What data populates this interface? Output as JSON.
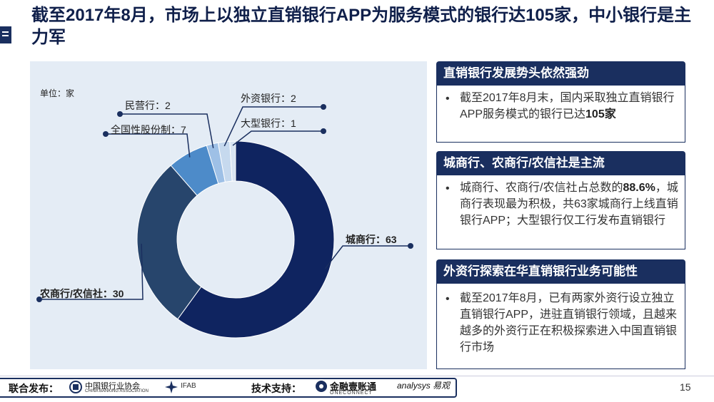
{
  "title": "截至2017年8月，市场上以独立直销银行APP为服务模式的银行达105家，中小银行是主力军",
  "colors": {
    "navy": "#1a2f5f",
    "panel": "#e4ecf5"
  },
  "chart_data": {
    "type": "pie",
    "unit_label": "单位：家",
    "categories": [
      "城商行",
      "农商行/农信社",
      "全国性股份制",
      "民营行",
      "外资银行",
      "大型银行"
    ],
    "values": [
      63,
      30,
      7,
      2,
      2,
      1
    ],
    "labels": [
      "城商行：63",
      "农商行/农信社：30",
      "全国性股份制：7",
      "民营行：2",
      "外资银行：2",
      "大型银行：1"
    ],
    "colors": [
      "#0f2460",
      "#27456c",
      "#4d8bc9",
      "#9ec0e6",
      "#c6d9ee",
      "#d8e4f2"
    ]
  },
  "cards": [
    {
      "heading": "直销银行发展势头依然强劲",
      "bullet": "•",
      "text_before": "截至2017年8月末，国内采取独立直销银行APP服务模式的银行已达",
      "text_bold": "105家",
      "text_after": ""
    },
    {
      "heading": "城商行、农商行/农信社是主流",
      "bullet": "•",
      "text_before": "城商行、农商行/农信社占总数的",
      "text_bold": "88.6%",
      "text_after": "，城商行表现最为积极，共63家城商行上线直销银行APP；大型银行仅工行发布直销银行"
    },
    {
      "heading": "外资行探索在华直销银行业务可能性",
      "bullet": "•",
      "text_before": "截至2017年8月，已有两家外资行设立独立直销银行APP，进驻直销银行领域，且越来越多的外资行正在积极探索进入中国直销银行市场",
      "text_bold": "",
      "text_after": ""
    }
  ],
  "footer": {
    "publish_label": "联合发布：",
    "org1": "中国银行业协会",
    "org1_en": "CHINA BANKING ASSOCIATION",
    "org2": "IFAB",
    "support_label": "技术支持：",
    "org3": "金融壹账通",
    "org3_en": "ONECONNECT",
    "org4": "analysys 易观",
    "page": "15"
  }
}
